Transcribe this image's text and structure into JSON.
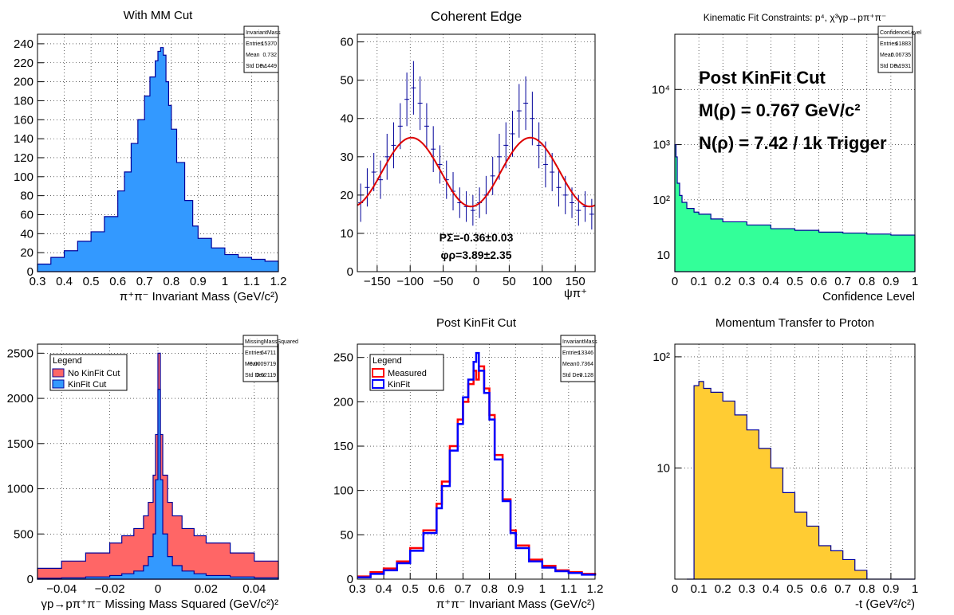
{
  "chart_data": [
    {
      "id": "p1",
      "type": "bar",
      "title": "With MM Cut",
      "xlabel": "π⁺π⁻ Invariant Mass (GeV/c²)",
      "ylabel": "",
      "xlim": [
        0.3,
        1.2
      ],
      "ylim": [
        0,
        250
      ],
      "log": false,
      "grid": true,
      "xticks": [
        "0.3",
        "0.4",
        "0.5",
        "0.6",
        "0.7",
        "0.8",
        "0.9",
        "1",
        "1.1",
        "1.2"
      ],
      "yticks": [
        "0",
        "20",
        "40",
        "60",
        "80",
        "100",
        "120",
        "140",
        "160",
        "180",
        "200",
        "220",
        "240"
      ],
      "stats": {
        "name": "InvariantMass",
        "rows": [
          [
            "Entries",
            "15370"
          ],
          [
            "Mean",
            "0.732"
          ],
          [
            "Std Dev",
            "0.1449"
          ]
        ]
      },
      "series": [
        {
          "fill": "#3399ff",
          "line": "#000099",
          "x": [
            0.3,
            0.35,
            0.4,
            0.45,
            0.5,
            0.55,
            0.6,
            0.625,
            0.65,
            0.675,
            0.7,
            0.72,
            0.74,
            0.75,
            0.76,
            0.77,
            0.78,
            0.79,
            0.8,
            0.82,
            0.85,
            0.88,
            0.9,
            0.95,
            1.0,
            1.05,
            1.1,
            1.15,
            1.2
          ],
          "y": [
            8,
            15,
            22,
            32,
            42,
            58,
            85,
            105,
            135,
            160,
            185,
            205,
            222,
            232,
            236,
            228,
            200,
            175,
            150,
            115,
            75,
            48,
            35,
            25,
            18,
            15,
            13,
            11,
            10
          ]
        }
      ]
    },
    {
      "id": "p2",
      "type": "scatter",
      "title": "Coherent Edge",
      "xlabel": "ψπ⁺",
      "ylabel": "",
      "xlim": [
        -180,
        180
      ],
      "ylim": [
        0,
        62
      ],
      "log": false,
      "grid": true,
      "xticks": [
        "−150",
        "−100",
        "−50",
        "0",
        "50",
        "100",
        "150"
      ],
      "yticks": [
        "0",
        "10",
        "20",
        "30",
        "40",
        "50",
        "60"
      ],
      "fit_text": [
        "PΣ=-0.36±0.03",
        "φρ=3.89±2.35"
      ],
      "series": [
        {
          "name": "data",
          "color": "#000099",
          "x": [
            -175,
            -165,
            -155,
            -145,
            -135,
            -125,
            -115,
            -105,
            -95,
            -85,
            -75,
            -65,
            -55,
            -45,
            -35,
            -25,
            -15,
            -5,
            5,
            15,
            25,
            35,
            45,
            55,
            65,
            75,
            85,
            95,
            105,
            115,
            125,
            135,
            145,
            155,
            165,
            175
          ],
          "y": [
            18,
            22,
            26,
            24,
            30,
            33,
            38,
            45,
            48,
            44,
            38,
            32,
            28,
            24,
            21,
            18,
            17,
            16,
            18,
            20,
            25,
            30,
            33,
            36,
            42,
            44,
            40,
            33,
            28,
            26,
            22,
            20,
            18,
            16,
            17,
            15
          ],
          "err": [
            5,
            5,
            5,
            5,
            6,
            6,
            6,
            7,
            7,
            7,
            6,
            6,
            5,
            5,
            5,
            4,
            4,
            4,
            4,
            5,
            5,
            6,
            6,
            6,
            7,
            7,
            7,
            6,
            6,
            5,
            5,
            5,
            4,
            4,
            4,
            4
          ]
        },
        {
          "name": "fit",
          "color": "#dd0000",
          "amplitude": 9,
          "offset": 26,
          "phase_deg": -8
        }
      ]
    },
    {
      "id": "p3",
      "type": "bar",
      "title": "Kinematic Fit Constraints: p⁴, χ³γp→pπ⁺π⁻",
      "xlabel": "Confidence Level",
      "ylabel": "",
      "xlim": [
        0,
        1
      ],
      "ylim": [
        5,
        100000
      ],
      "log": true,
      "grid": true,
      "xticks": [
        "0",
        "0.1",
        "0.2",
        "0.3",
        "0.4",
        "0.5",
        "0.6",
        "0.7",
        "0.8",
        "0.9",
        "1"
      ],
      "yticks_log": [
        {
          "v": 10,
          "l": "10"
        },
        {
          "v": 100,
          "l": "10²"
        },
        {
          "v": 1000,
          "l": "10³"
        },
        {
          "v": 10000,
          "l": "10⁴"
        }
      ],
      "stats": {
        "name": "ConfidenceLevel",
        "rows": [
          [
            "Entries",
            "61883"
          ],
          [
            "Mean",
            "0.06735"
          ],
          [
            "Std Dev",
            "0.1931"
          ]
        ]
      },
      "annotations": [
        "Post KinFit Cut",
        "M(ρ) = 0.767 GeV/c²",
        "N(ρ) = 7.42 / 1k Trigger"
      ],
      "series": [
        {
          "fill": "#33ff99",
          "line": "#000099",
          "x": [
            0,
            0.005,
            0.01,
            0.02,
            0.03,
            0.05,
            0.08,
            0.1,
            0.15,
            0.2,
            0.3,
            0.4,
            0.5,
            0.6,
            0.7,
            0.8,
            0.9,
            1.0
          ],
          "y": [
            1000,
            600,
            200,
            120,
            90,
            70,
            60,
            55,
            45,
            40,
            35,
            30,
            28,
            26,
            25,
            24,
            23,
            22
          ]
        }
      ]
    },
    {
      "id": "p4",
      "type": "bar",
      "title": "",
      "xlabel": "γp→pπ⁺π⁻ Missing Mass Squared (GeV/c²)²",
      "ylabel": "",
      "xlim": [
        -0.05,
        0.05
      ],
      "ylim": [
        0,
        2600
      ],
      "log": false,
      "grid": true,
      "xticks": [
        "−0.04",
        "−0.02",
        "0",
        "0.02",
        "0.04"
      ],
      "yticks": [
        "0",
        "500",
        "1000",
        "1500",
        "2000",
        "2500"
      ],
      "stats": {
        "name": "MissingMassSquared",
        "rows": [
          [
            "Entries",
            "64711"
          ],
          [
            "Mean",
            "-0.0009719"
          ],
          [
            "Std Dev",
            "0.02119"
          ]
        ]
      },
      "legend": {
        "title": "Legend",
        "entries": [
          "No KinFit Cut",
          "KinFit Cut"
        ]
      },
      "series": [
        {
          "name": "No KinFit Cut",
          "fill": "#ff6666",
          "line": "#000099",
          "x": [
            -0.05,
            -0.04,
            -0.03,
            -0.02,
            -0.015,
            -0.01,
            -0.006,
            -0.004,
            -0.002,
            -0.001,
            0,
            0.001,
            0.002,
            0.004,
            0.006,
            0.01,
            0.015,
            0.02,
            0.03,
            0.04,
            0.05
          ],
          "y": [
            120,
            200,
            290,
            400,
            480,
            560,
            700,
            850,
            1150,
            1600,
            2500,
            1600,
            1150,
            850,
            700,
            560,
            480,
            400,
            290,
            200,
            120
          ]
        },
        {
          "name": "KinFit Cut",
          "fill": "#3399ff",
          "line": "#000099",
          "x": [
            -0.05,
            -0.04,
            -0.03,
            -0.02,
            -0.015,
            -0.01,
            -0.006,
            -0.004,
            -0.002,
            -0.001,
            0,
            0.001,
            0.002,
            0.004,
            0.006,
            0.01,
            0.015,
            0.02,
            0.03,
            0.04,
            0.05
          ],
          "y": [
            10,
            15,
            25,
            40,
            60,
            90,
            150,
            250,
            500,
            1100,
            2100,
            1100,
            500,
            250,
            150,
            90,
            60,
            40,
            25,
            15,
            10
          ]
        }
      ]
    },
    {
      "id": "p5",
      "type": "line",
      "title": "Post KinFit Cut",
      "xlabel": "π⁺π⁻ Invariant Mass (GeV/c²)",
      "ylabel": "",
      "xlim": [
        0.3,
        1.2
      ],
      "ylim": [
        0,
        265
      ],
      "log": false,
      "grid": true,
      "xticks": [
        "0.3",
        "0.4",
        "0.5",
        "0.6",
        "0.7",
        "0.8",
        "0.9",
        "1",
        "1.1",
        "1.2"
      ],
      "yticks": [
        "0",
        "50",
        "100",
        "150",
        "200",
        "250"
      ],
      "stats": {
        "name": "InvariantMass",
        "rows": [
          [
            "Entries",
            "13346"
          ],
          [
            "Mean",
            "0.7364"
          ],
          [
            "Std Dev",
            "0.128"
          ]
        ]
      },
      "legend": {
        "title": "Legend",
        "entries": [
          "Measured",
          "KinFit"
        ]
      },
      "series": [
        {
          "name": "Measured",
          "color": "#ff0000",
          "x": [
            0.3,
            0.35,
            0.4,
            0.45,
            0.5,
            0.55,
            0.6,
            0.62,
            0.65,
            0.68,
            0.7,
            0.72,
            0.74,
            0.75,
            0.76,
            0.78,
            0.8,
            0.82,
            0.85,
            0.88,
            0.9,
            0.95,
            1.0,
            1.05,
            1.1,
            1.15,
            1.2
          ],
          "y": [
            3,
            8,
            12,
            20,
            35,
            55,
            85,
            110,
            150,
            180,
            200,
            220,
            235,
            225,
            240,
            215,
            185,
            140,
            90,
            55,
            38,
            22,
            15,
            10,
            8,
            6,
            5
          ]
        },
        {
          "name": "KinFit",
          "color": "#0000ff",
          "x": [
            0.3,
            0.35,
            0.4,
            0.45,
            0.5,
            0.55,
            0.6,
            0.62,
            0.65,
            0.68,
            0.7,
            0.72,
            0.74,
            0.75,
            0.76,
            0.78,
            0.8,
            0.82,
            0.85,
            0.88,
            0.9,
            0.95,
            1.0,
            1.05,
            1.1,
            1.15,
            1.2
          ],
          "y": [
            2,
            6,
            10,
            18,
            32,
            52,
            80,
            105,
            145,
            175,
            205,
            225,
            245,
            255,
            235,
            210,
            180,
            135,
            88,
            52,
            35,
            20,
            13,
            9,
            7,
            5,
            4
          ]
        }
      ]
    },
    {
      "id": "p6",
      "type": "bar",
      "title": "Momentum Transfer to Proton",
      "xlabel": "-t (GeV²/c²)",
      "ylabel": "",
      "xlim": [
        0,
        1
      ],
      "ylim": [
        1,
        130
      ],
      "log": true,
      "grid": true,
      "xticks": [
        "0",
        "0.1",
        "0.2",
        "0.3",
        "0.4",
        "0.5",
        "0.6",
        "0.7",
        "0.8",
        "0.9",
        "1"
      ],
      "yticks_log": [
        {
          "v": 10,
          "l": "10"
        },
        {
          "v": 100,
          "l": "10²"
        }
      ],
      "series": [
        {
          "fill": "#ffcc33",
          "line": "#000099",
          "x": [
            0.05,
            0.08,
            0.1,
            0.12,
            0.15,
            0.2,
            0.25,
            0.3,
            0.35,
            0.4,
            0.45,
            0.5,
            0.55,
            0.6,
            0.65,
            0.7,
            0.75,
            0.8,
            0.85,
            0.9,
            0.95,
            1.0
          ],
          "y": [
            1,
            55,
            60,
            52,
            48,
            40,
            30,
            22,
            15,
            10,
            6,
            4,
            3,
            2,
            1.8,
            1.5,
            1.2,
            1,
            1,
            1,
            1,
            1
          ]
        }
      ]
    }
  ]
}
